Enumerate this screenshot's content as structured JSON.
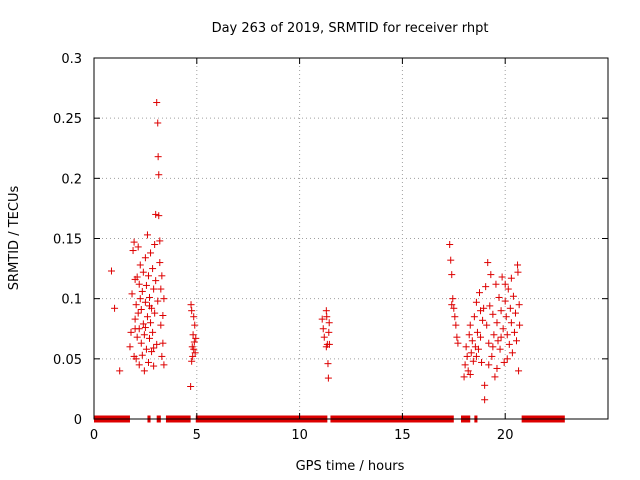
{
  "chart_data": {
    "type": "scatter",
    "title": "Day 263 of 2019, SRMTID for receiver rhpt",
    "xlabel": "GPS time / hours",
    "ylabel": "SRMTID / TECUs",
    "xlim": [
      0,
      25
    ],
    "ylim": [
      0,
      0.3
    ],
    "xticks": [
      0,
      5,
      10,
      15,
      20
    ],
    "xtick_labels": [
      "0",
      "5",
      "10",
      "15",
      "20"
    ],
    "yticks": [
      0,
      0.05,
      0.1,
      0.15,
      0.2,
      0.25,
      0.3
    ],
    "ytick_labels": [
      "0",
      "0.05",
      "0.1",
      "0.15",
      "0.2",
      "0.25",
      "0.3"
    ],
    "grid": true,
    "marker": "+",
    "colors": {
      "series": "#dd0000",
      "grid": "#a0a0a0",
      "axes": "#000000"
    },
    "series": [
      {
        "points": [
          [
            0.85,
            0.123
          ],
          [
            1.0,
            0.092
          ],
          [
            1.25,
            0.04
          ],
          [
            1.75,
            0.06
          ],
          [
            1.8,
            0.072
          ],
          [
            1.85,
            0.104
          ],
          [
            1.9,
            0.14
          ],
          [
            1.95,
            0.147
          ],
          [
            2.0,
            0.083
          ],
          [
            2.0,
            0.116
          ],
          [
            2.05,
            0.095
          ],
          [
            2.05,
            0.05
          ],
          [
            2.1,
            0.118
          ],
          [
            2.1,
            0.068
          ],
          [
            2.15,
            0.143
          ],
          [
            2.15,
            0.088
          ],
          [
            2.2,
            0.075
          ],
          [
            2.2,
            0.045
          ],
          [
            2.25,
            0.1
          ],
          [
            2.25,
            0.128
          ],
          [
            2.3,
            0.063
          ],
          [
            2.3,
            0.091
          ],
          [
            2.35,
            0.106
          ],
          [
            2.35,
            0.053
          ],
          [
            2.4,
            0.079
          ],
          [
            2.4,
            0.122
          ],
          [
            2.45,
            0.04
          ],
          [
            2.45,
            0.07
          ],
          [
            2.5,
            0.097
          ],
          [
            2.5,
            0.134
          ],
          [
            2.55,
            0.058
          ],
          [
            2.55,
            0.111
          ],
          [
            2.6,
            0.085
          ],
          [
            2.6,
            0.153
          ],
          [
            2.65,
            0.047
          ],
          [
            2.65,
            0.119
          ],
          [
            2.7,
            0.067
          ],
          [
            2.7,
            0.101
          ],
          [
            2.75,
            0.138
          ],
          [
            2.75,
            0.08
          ],
          [
            2.8,
            0.092
          ],
          [
            2.8,
            0.056
          ],
          [
            2.85,
            0.125
          ],
          [
            2.85,
            0.072
          ],
          [
            2.9,
            0.108
          ],
          [
            2.9,
            0.044
          ],
          [
            2.95,
            0.145
          ],
          [
            2.95,
            0.088
          ],
          [
            3.0,
            0.17
          ],
          [
            3.0,
            0.115
          ],
          [
            3.05,
            0.263
          ],
          [
            3.05,
            0.062
          ],
          [
            3.1,
            0.246
          ],
          [
            3.1,
            0.098
          ],
          [
            3.12,
            0.218
          ],
          [
            3.15,
            0.203
          ],
          [
            3.15,
            0.169
          ],
          [
            3.2,
            0.148
          ],
          [
            3.2,
            0.13
          ],
          [
            3.25,
            0.078
          ],
          [
            3.25,
            0.108
          ],
          [
            3.3,
            0.052
          ],
          [
            3.3,
            0.119
          ],
          [
            3.35,
            0.086
          ],
          [
            3.35,
            0.063
          ],
          [
            3.4,
            0.1
          ],
          [
            3.4,
            0.045
          ],
          [
            2.0,
            0.075
          ],
          [
            2.5,
            0.076
          ],
          [
            2.2,
            0.112
          ],
          [
            2.7,
            0.094
          ],
          [
            2.9,
            0.059
          ],
          [
            1.95,
            0.052
          ],
          [
            4.7,
            0.027
          ],
          [
            4.72,
            0.095
          ],
          [
            4.75,
            0.09
          ],
          [
            4.78,
            0.06
          ],
          [
            4.8,
            0.052
          ],
          [
            4.82,
            0.07
          ],
          [
            4.85,
            0.085
          ],
          [
            4.88,
            0.064
          ],
          [
            4.9,
            0.078
          ],
          [
            4.92,
            0.055
          ],
          [
            4.95,
            0.067
          ],
          [
            4.75,
            0.048
          ],
          [
            4.85,
            0.058
          ],
          [
            11.1,
            0.083
          ],
          [
            11.15,
            0.075
          ],
          [
            11.2,
            0.068
          ],
          [
            11.3,
            0.09
          ],
          [
            11.32,
            0.085
          ],
          [
            11.35,
            0.062
          ],
          [
            11.38,
            0.046
          ],
          [
            11.4,
            0.034
          ],
          [
            11.42,
            0.072
          ],
          [
            11.44,
            0.08
          ],
          [
            11.3,
            0.06
          ],
          [
            11.45,
            0.062
          ],
          [
            17.3,
            0.145
          ],
          [
            17.35,
            0.132
          ],
          [
            17.4,
            0.12
          ],
          [
            17.45,
            0.1
          ],
          [
            17.5,
            0.092
          ],
          [
            17.55,
            0.085
          ],
          [
            17.6,
            0.078
          ],
          [
            17.65,
            0.068
          ],
          [
            17.7,
            0.063
          ],
          [
            17.4,
            0.095
          ],
          [
            18.0,
            0.035
          ],
          [
            18.05,
            0.045
          ],
          [
            18.1,
            0.06
          ],
          [
            18.15,
            0.052
          ],
          [
            18.2,
            0.04
          ],
          [
            18.25,
            0.07
          ],
          [
            18.3,
            0.078
          ],
          [
            18.35,
            0.055
          ],
          [
            18.4,
            0.065
          ],
          [
            18.45,
            0.048
          ],
          [
            18.5,
            0.085
          ],
          [
            18.55,
            0.06
          ],
          [
            18.6,
            0.097
          ],
          [
            18.65,
            0.072
          ],
          [
            18.7,
            0.058
          ],
          [
            18.75,
            0.105
          ],
          [
            18.8,
            0.068
          ],
          [
            18.85,
            0.047
          ],
          [
            18.9,
            0.082
          ],
          [
            18.95,
            0.092
          ],
          [
            19.0,
            0.016
          ],
          [
            19.05,
            0.11
          ],
          [
            19.1,
            0.078
          ],
          [
            19.15,
            0.13
          ],
          [
            19.2,
            0.063
          ],
          [
            19.25,
            0.094
          ],
          [
            19.3,
            0.12
          ],
          [
            19.35,
            0.052
          ],
          [
            19.4,
            0.087
          ],
          [
            19.45,
            0.07
          ],
          [
            19.5,
            0.035
          ],
          [
            19.55,
            0.112
          ],
          [
            19.6,
            0.08
          ],
          [
            19.65,
            0.065
          ],
          [
            19.7,
            0.101
          ],
          [
            19.75,
            0.058
          ],
          [
            19.8,
            0.09
          ],
          [
            19.85,
            0.118
          ],
          [
            19.9,
            0.075
          ],
          [
            19.95,
            0.047
          ],
          [
            20.0,
            0.098
          ],
          [
            20.05,
            0.085
          ],
          [
            20.1,
            0.07
          ],
          [
            20.15,
            0.108
          ],
          [
            20.2,
            0.062
          ],
          [
            20.25,
            0.092
          ],
          [
            20.3,
            0.08
          ],
          [
            20.35,
            0.055
          ],
          [
            20.4,
            0.102
          ],
          [
            20.45,
            0.072
          ],
          [
            20.5,
            0.088
          ],
          [
            20.55,
            0.065
          ],
          [
            20.6,
            0.128
          ],
          [
            20.62,
            0.122
          ],
          [
            20.65,
            0.04
          ],
          [
            20.68,
            0.095
          ],
          [
            20.7,
            0.078
          ],
          [
            19.2,
            0.045
          ],
          [
            19.6,
            0.042
          ],
          [
            18.3,
            0.037
          ],
          [
            20.0,
            0.112
          ],
          [
            19.8,
            0.068
          ],
          [
            19.4,
            0.06
          ],
          [
            18.8,
            0.09
          ],
          [
            20.3,
            0.117
          ],
          [
            19.0,
            0.028
          ],
          [
            18.6,
            0.052
          ],
          [
            20.1,
            0.05
          ]
        ]
      }
    ],
    "baseline_segments": [
      [
        0.0,
        1.75
      ],
      [
        2.6,
        2.75
      ],
      [
        3.05,
        3.25
      ],
      [
        3.5,
        4.7
      ],
      [
        4.95,
        11.35
      ],
      [
        11.5,
        17.5
      ],
      [
        17.85,
        18.3
      ],
      [
        18.5,
        18.65
      ],
      [
        20.8,
        22.9
      ]
    ]
  }
}
